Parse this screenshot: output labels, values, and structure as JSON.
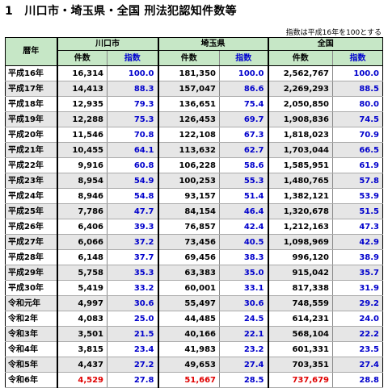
{
  "title": "1　川口市・埼玉県・全国 刑法犯認知件数等",
  "note": "指数は平成16年を100とする",
  "headers": {
    "year": "暦年",
    "groups": [
      "川口市",
      "埼玉県",
      "全国"
    ],
    "count": "件数",
    "index": "指数"
  },
  "rows": [
    {
      "year": "平成16年",
      "kawaguchi": [
        "16,314",
        "100.0"
      ],
      "saitama": [
        "181,350",
        "100.0"
      ],
      "national": [
        "2,562,767",
        "100.0"
      ]
    },
    {
      "year": "平成17年",
      "kawaguchi": [
        "14,413",
        "88.3"
      ],
      "saitama": [
        "157,047",
        "86.6"
      ],
      "national": [
        "2,269,293",
        "88.5"
      ]
    },
    {
      "year": "平成18年",
      "kawaguchi": [
        "12,935",
        "79.3"
      ],
      "saitama": [
        "136,651",
        "75.4"
      ],
      "national": [
        "2,050,850",
        "80.0"
      ]
    },
    {
      "year": "平成19年",
      "kawaguchi": [
        "12,288",
        "75.3"
      ],
      "saitama": [
        "126,453",
        "69.7"
      ],
      "national": [
        "1,908,836",
        "74.5"
      ]
    },
    {
      "year": "平成20年",
      "kawaguchi": [
        "11,546",
        "70.8"
      ],
      "saitama": [
        "122,108",
        "67.3"
      ],
      "national": [
        "1,818,023",
        "70.9"
      ]
    },
    {
      "year": "平成21年",
      "kawaguchi": [
        "10,455",
        "64.1"
      ],
      "saitama": [
        "113,632",
        "62.7"
      ],
      "national": [
        "1,703,044",
        "66.5"
      ]
    },
    {
      "year": "平成22年",
      "kawaguchi": [
        "9,916",
        "60.8"
      ],
      "saitama": [
        "106,228",
        "58.6"
      ],
      "national": [
        "1,585,951",
        "61.9"
      ]
    },
    {
      "year": "平成23年",
      "kawaguchi": [
        "8,954",
        "54.9"
      ],
      "saitama": [
        "100,253",
        "55.3"
      ],
      "national": [
        "1,480,765",
        "57.8"
      ]
    },
    {
      "year": "平成24年",
      "kawaguchi": [
        "8,946",
        "54.8"
      ],
      "saitama": [
        "93,157",
        "51.4"
      ],
      "national": [
        "1,382,121",
        "53.9"
      ]
    },
    {
      "year": "平成25年",
      "kawaguchi": [
        "7,786",
        "47.7"
      ],
      "saitama": [
        "84,154",
        "46.4"
      ],
      "national": [
        "1,320,678",
        "51.5"
      ]
    },
    {
      "year": "平成26年",
      "kawaguchi": [
        "6,406",
        "39.3"
      ],
      "saitama": [
        "76,857",
        "42.4"
      ],
      "national": [
        "1,212,163",
        "47.3"
      ]
    },
    {
      "year": "平成27年",
      "kawaguchi": [
        "6,066",
        "37.2"
      ],
      "saitama": [
        "73,456",
        "40.5"
      ],
      "national": [
        "1,098,969",
        "42.9"
      ]
    },
    {
      "year": "平成28年",
      "kawaguchi": [
        "6,148",
        "37.7"
      ],
      "saitama": [
        "69,456",
        "38.3"
      ],
      "national": [
        "996,120",
        "38.9"
      ]
    },
    {
      "year": "平成29年",
      "kawaguchi": [
        "5,758",
        "35.3"
      ],
      "saitama": [
        "63,383",
        "35.0"
      ],
      "national": [
        "915,042",
        "35.7"
      ]
    },
    {
      "year": "平成30年",
      "kawaguchi": [
        "5,419",
        "33.2"
      ],
      "saitama": [
        "60,001",
        "33.1"
      ],
      "national": [
        "817,338",
        "31.9"
      ]
    },
    {
      "year": "令和元年",
      "kawaguchi": [
        "4,997",
        "30.6"
      ],
      "saitama": [
        "55,497",
        "30.6"
      ],
      "national": [
        "748,559",
        "29.2"
      ]
    },
    {
      "year": "令和2年",
      "kawaguchi": [
        "4,083",
        "25.0"
      ],
      "saitama": [
        "44,485",
        "24.5"
      ],
      "national": [
        "614,231",
        "24.0"
      ]
    },
    {
      "year": "令和3年",
      "kawaguchi": [
        "3,501",
        "21.5"
      ],
      "saitama": [
        "40,166",
        "22.1"
      ],
      "national": [
        "568,104",
        "22.2"
      ]
    },
    {
      "year": "令和4年",
      "kawaguchi": [
        "3,815",
        "23.4"
      ],
      "saitama": [
        "41,983",
        "23.2"
      ],
      "national": [
        "601,331",
        "23.5"
      ]
    },
    {
      "year": "令和5年",
      "kawaguchi": [
        "4,437",
        "27.2"
      ],
      "saitama": [
        "49,653",
        "27.4"
      ],
      "national": [
        "703,351",
        "27.4"
      ]
    },
    {
      "year": "令和6年",
      "kawaguchi": [
        "4,529",
        "27.8"
      ],
      "saitama": [
        "51,667",
        "28.5"
      ],
      "national": [
        "737,679",
        "28.8"
      ]
    }
  ],
  "highlight_last_row_count_color": "#e00000",
  "index_color": "#0000cc",
  "header_bg": "#c6e7c6"
}
